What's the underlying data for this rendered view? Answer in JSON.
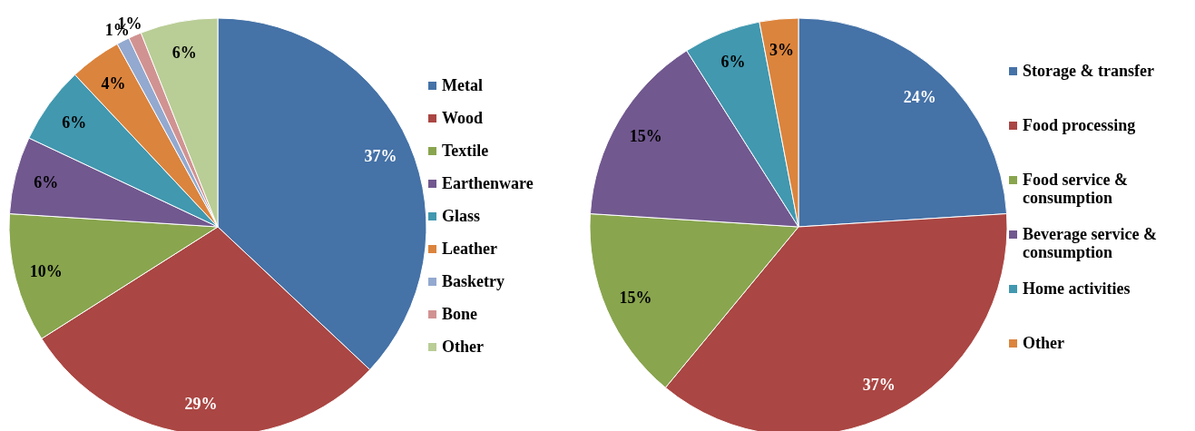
{
  "chart_data": [
    {
      "type": "pie",
      "categories": [
        "Metal",
        "Wood",
        "Textile",
        "Earthenware",
        "Glass",
        "Leather",
        "Basketry",
        "Bone",
        "Other"
      ],
      "values": [
        37,
        29,
        10,
        6,
        6,
        4,
        1,
        1,
        6
      ],
      "colors": [
        "#4572a7",
        "#aa4643",
        "#89a54e",
        "#71588f",
        "#4198af",
        "#db843d",
        "#93a9cf",
        "#d19392",
        "#b9cd96"
      ],
      "value_labels": [
        "37%",
        "29%",
        "10%",
        "6%",
        "6%",
        "4%",
        "1%",
        "1%",
        "6%"
      ],
      "legend": "right"
    },
    {
      "type": "pie",
      "categories": [
        "Storage & transfer",
        "Food processing",
        "Food service & consumption",
        "Beverage service & consumption",
        "Home activities",
        "Other"
      ],
      "values": [
        24,
        37,
        15,
        15,
        6,
        3
      ],
      "colors": [
        "#4572a7",
        "#aa4643",
        "#89a54e",
        "#71588f",
        "#4198af",
        "#db843d"
      ],
      "value_labels": [
        "24%",
        "37%",
        "15%",
        "15%",
        "6%",
        "3%"
      ],
      "legend": "right"
    }
  ]
}
